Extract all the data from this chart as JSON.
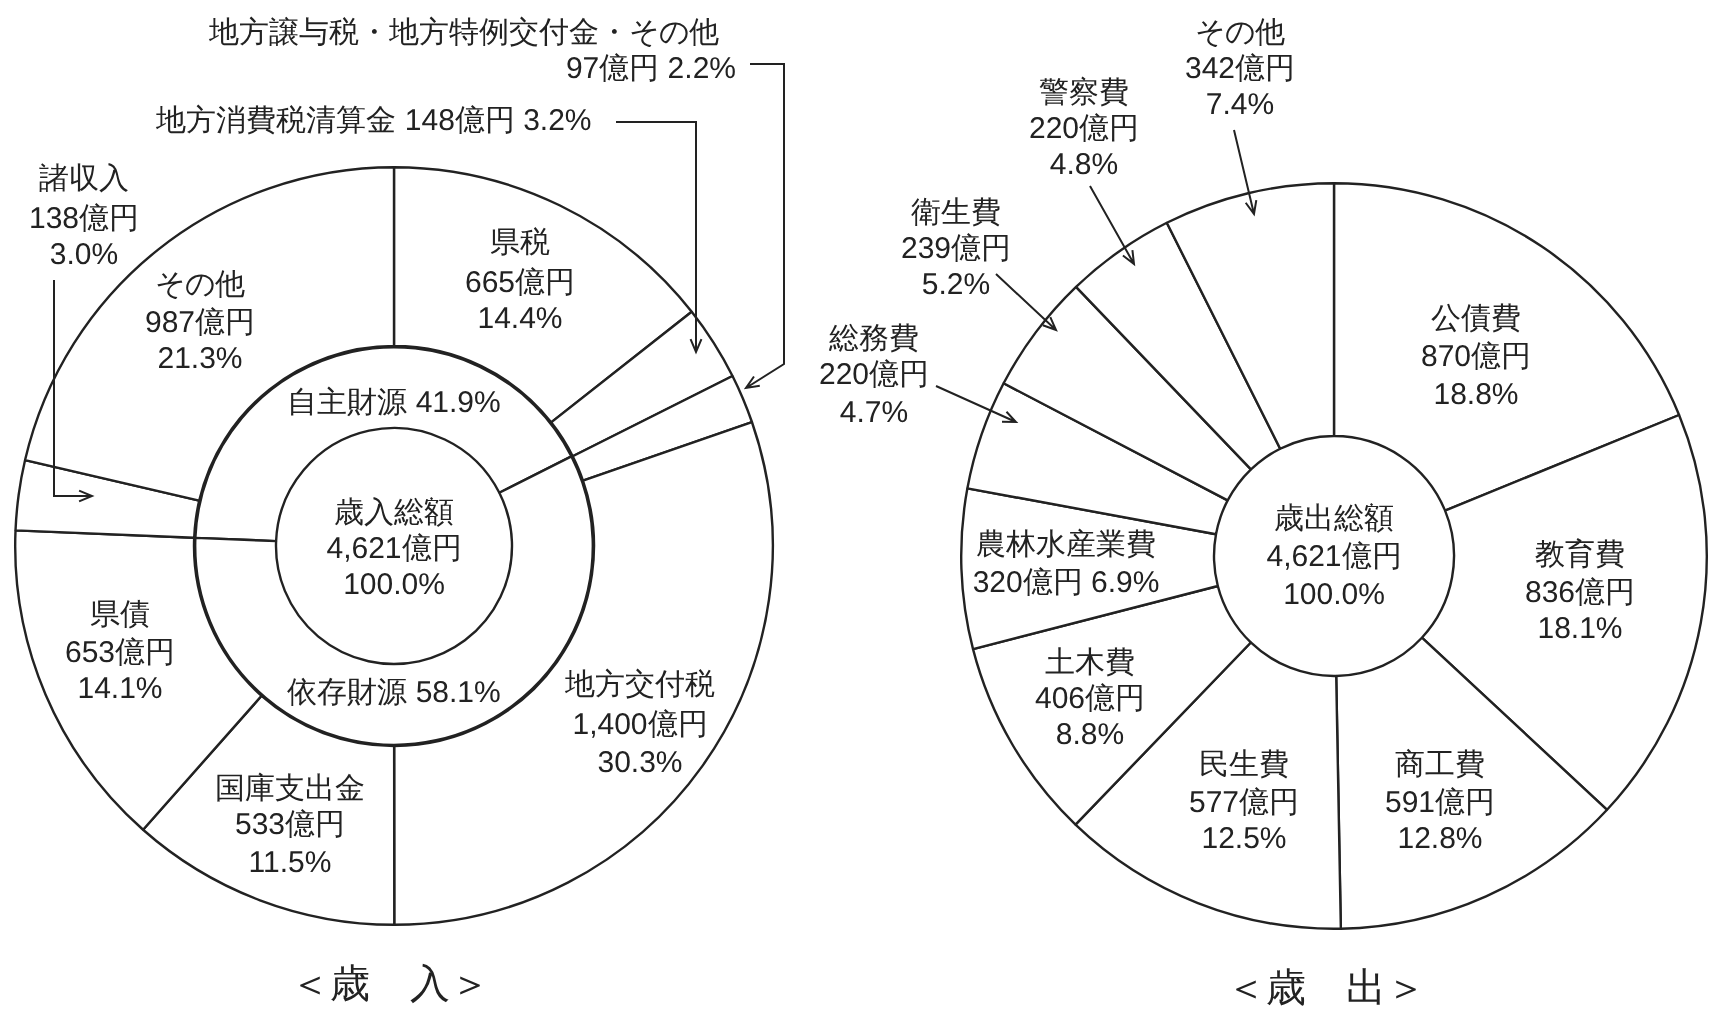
{
  "chart_data": [
    {
      "type": "donut",
      "title": "＜歳　入＞",
      "categories": [
        "県税",
        "地方消費税清算金",
        "地方譲与税・地方特例交付金・その他",
        "地方交付税",
        "国庫支出金",
        "県債",
        "諸収入",
        "その他"
      ],
      "values": [
        665,
        148,
        97,
        1400,
        533,
        653,
        138,
        987
      ],
      "value_labels": [
        "665億円 14.4%",
        "148億円 3.2%",
        "97億円 2.2%",
        "1,400億円 30.3%",
        "533億円 11.5%",
        "653億円 14.1%",
        "138億円 3.0%",
        "987億円 21.3%"
      ],
      "color": "#ffffff"
    },
    {
      "type": "donut",
      "annotations": [
        "歳入総額\n4,621億円\n100.0%"
      ],
      "categories": [
        "自主財源",
        "依存財源"
      ],
      "values": [
        41.9,
        58.1
      ],
      "value_labels": [
        "41.9%",
        "58.1%"
      ],
      "color": "#ffffff"
    },
    {
      "type": "donut",
      "title": "＜歳　出＞",
      "annotations": [
        "歳出総額\n4,621億円\n100.0%"
      ],
      "categories": [
        "公債費",
        "教育費",
        "商工費",
        "民生費",
        "土木費",
        "農林水産業費",
        "総務費",
        "衛生費",
        "警察費",
        "その他"
      ],
      "values": [
        870,
        836,
        591,
        577,
        406,
        320,
        220,
        239,
        220,
        342
      ],
      "value_labels": [
        "870億円 18.8%",
        "836億円 18.1%",
        "591億円 12.8%",
        "577億円 12.5%",
        "406億円 8.8%",
        "320億円 6.9%",
        "220億円 4.7%",
        "239億円 5.2%",
        "220億円 4.8%",
        "342億円 7.4%"
      ],
      "color": "#ffffff"
    }
  ]
}
